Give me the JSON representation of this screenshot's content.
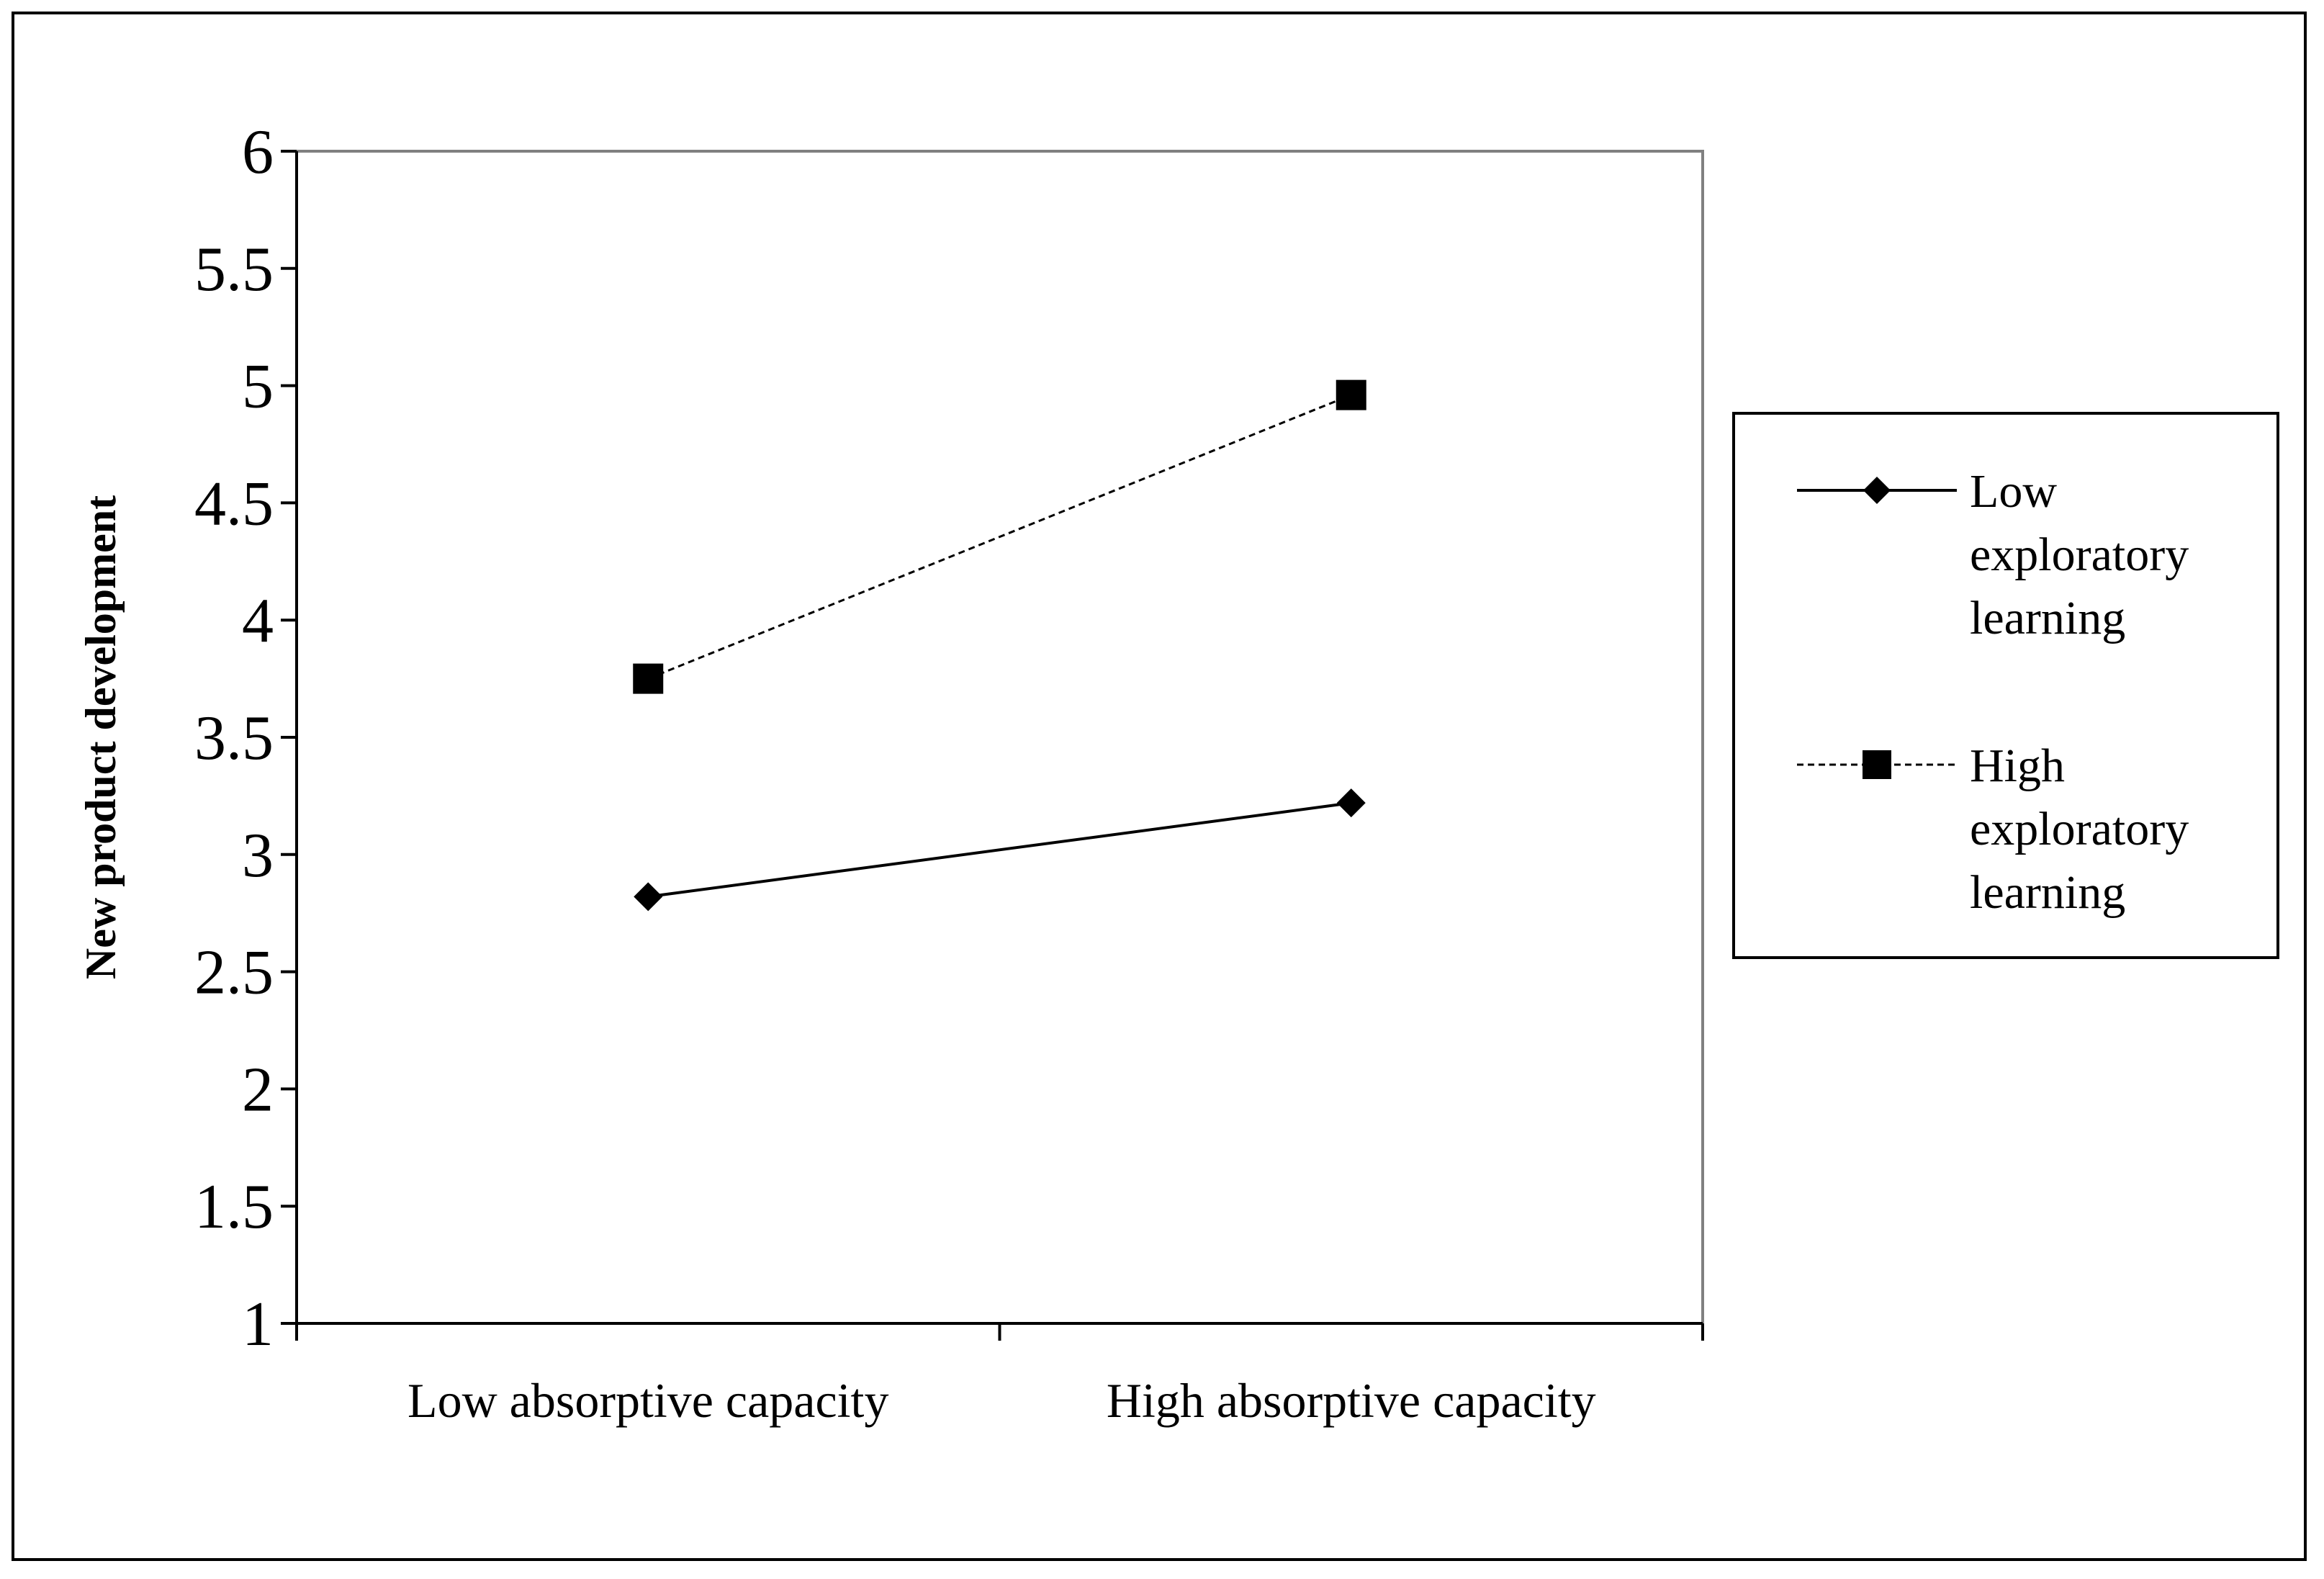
{
  "chart_data": {
    "type": "line",
    "title": "",
    "xlabel": "",
    "ylabel": "New product development",
    "categories": [
      "Low absorptive capacity",
      "High absorptive capacity"
    ],
    "ylim": [
      1,
      6
    ],
    "yticks": [
      "1",
      "1.5",
      "2",
      "2.5",
      "3",
      "3.5",
      "4",
      "4.5",
      "5",
      "5.5",
      "6"
    ],
    "grid": false,
    "legend_position": "right",
    "series": [
      {
        "name": "Low exploratory learning",
        "name_lines": [
          "Low",
          "exploratory",
          "learning"
        ],
        "values": [
          2.82,
          3.22
        ],
        "line_style": "solid",
        "marker": "diamond",
        "color": "#000000"
      },
      {
        "name": "High exploratory learning",
        "name_lines": [
          "High",
          "exploratory",
          "learning"
        ],
        "values": [
          3.75,
          4.96
        ],
        "line_style": "dashed",
        "marker": "square",
        "color": "#000000"
      }
    ]
  },
  "colors": {
    "plot_border": "#808080",
    "axis": "#000000",
    "background": "#ffffff"
  }
}
